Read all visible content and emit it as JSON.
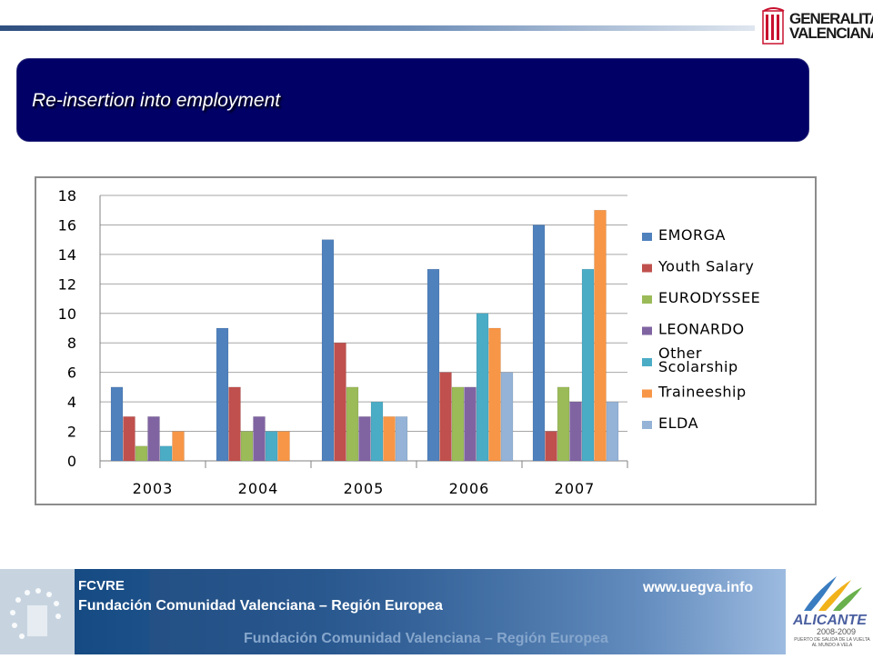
{
  "header": {
    "logo_text": "GENERALITAT\nVALENCIANA",
    "title": "Re-insertion into employment"
  },
  "chart_data": {
    "type": "bar",
    "title": "",
    "xlabel": "",
    "ylabel": "",
    "ylim": [
      0,
      18
    ],
    "yticks": [
      0,
      2,
      4,
      6,
      8,
      10,
      12,
      14,
      16,
      18
    ],
    "grid": true,
    "legend_position": "right",
    "categories": [
      "2003",
      "2004",
      "2005",
      "2006",
      "2007"
    ],
    "series": [
      {
        "name": "EMORGA",
        "color": "#4f81bd",
        "values": [
          5,
          9,
          15,
          13,
          16
        ]
      },
      {
        "name": "Youth Salary",
        "color": "#c0504d",
        "values": [
          3,
          5,
          8,
          6,
          2
        ]
      },
      {
        "name": "EURODYSSEE",
        "color": "#9bbb59",
        "values": [
          1,
          2,
          5,
          5,
          5
        ]
      },
      {
        "name": "LEONARDO",
        "color": "#8064a2",
        "values": [
          3,
          3,
          3,
          5,
          4
        ]
      },
      {
        "name": "Other Scolarship",
        "color": "#4bacc6",
        "values": [
          1,
          2,
          4,
          10,
          13
        ]
      },
      {
        "name": "Traineeship",
        "color": "#f79646",
        "values": [
          2,
          2,
          3,
          9,
          17
        ]
      },
      {
        "name": "ELDA",
        "color": "#95b3d7",
        "values": [
          0,
          0,
          3,
          6,
          4
        ]
      }
    ]
  },
  "footer": {
    "org_short": "FCVRE",
    "org_name": "Fundación Comunidad Valenciana – Región Europea",
    "url": "www.uegva.info",
    "ghost_text": "Fundación Comunidad Valenciana – Región Europea",
    "logo_title": "ALICANTE",
    "logo_years": "2008-2009",
    "logo_tagline": "PUERTO DE SALIDA DE LA VUELTA AL MUNDO A VELA"
  }
}
